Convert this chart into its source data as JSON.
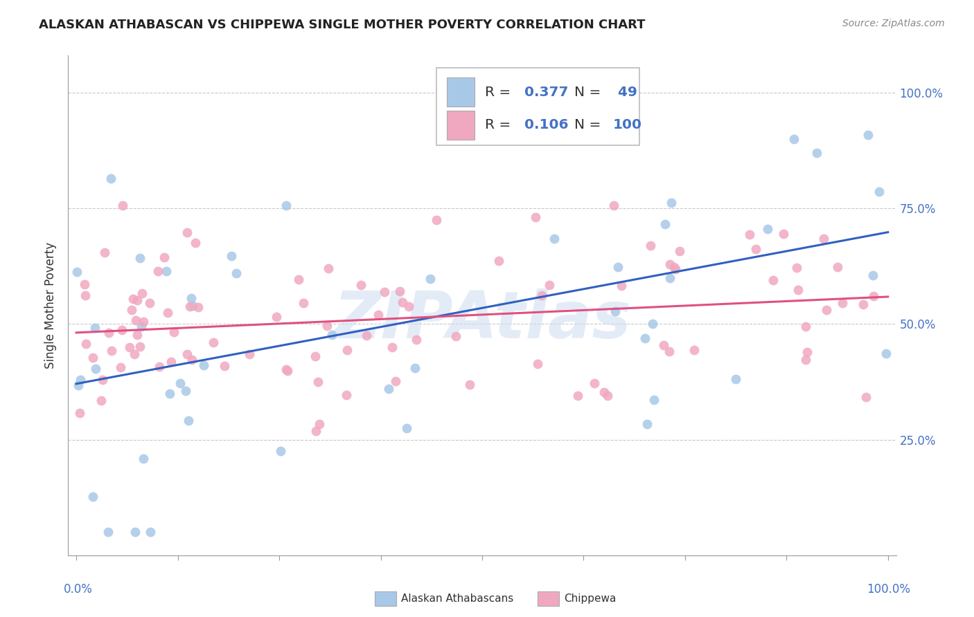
{
  "title": "ALASKAN ATHABASCAN VS CHIPPEWA SINGLE MOTHER POVERTY CORRELATION CHART",
  "source": "Source: ZipAtlas.com",
  "ylabel": "Single Mother Poverty",
  "blue_color": "#a8c8e8",
  "pink_color": "#f0a8c0",
  "blue_line_color": "#3060c0",
  "pink_line_color": "#e05080",
  "watermark_color": "#ccddf0",
  "watermark_text": "ZIPAtlas",
  "ytick_labels": [
    "25.0%",
    "50.0%",
    "75.0%",
    "100.0%"
  ],
  "ytick_values": [
    0.25,
    0.5,
    0.75,
    1.0
  ],
  "legend_r_blue": "0.377",
  "legend_n_blue": "49",
  "legend_r_pink": "0.106",
  "legend_n_pink": "100",
  "blue_seed": 12,
  "pink_seed": 7
}
